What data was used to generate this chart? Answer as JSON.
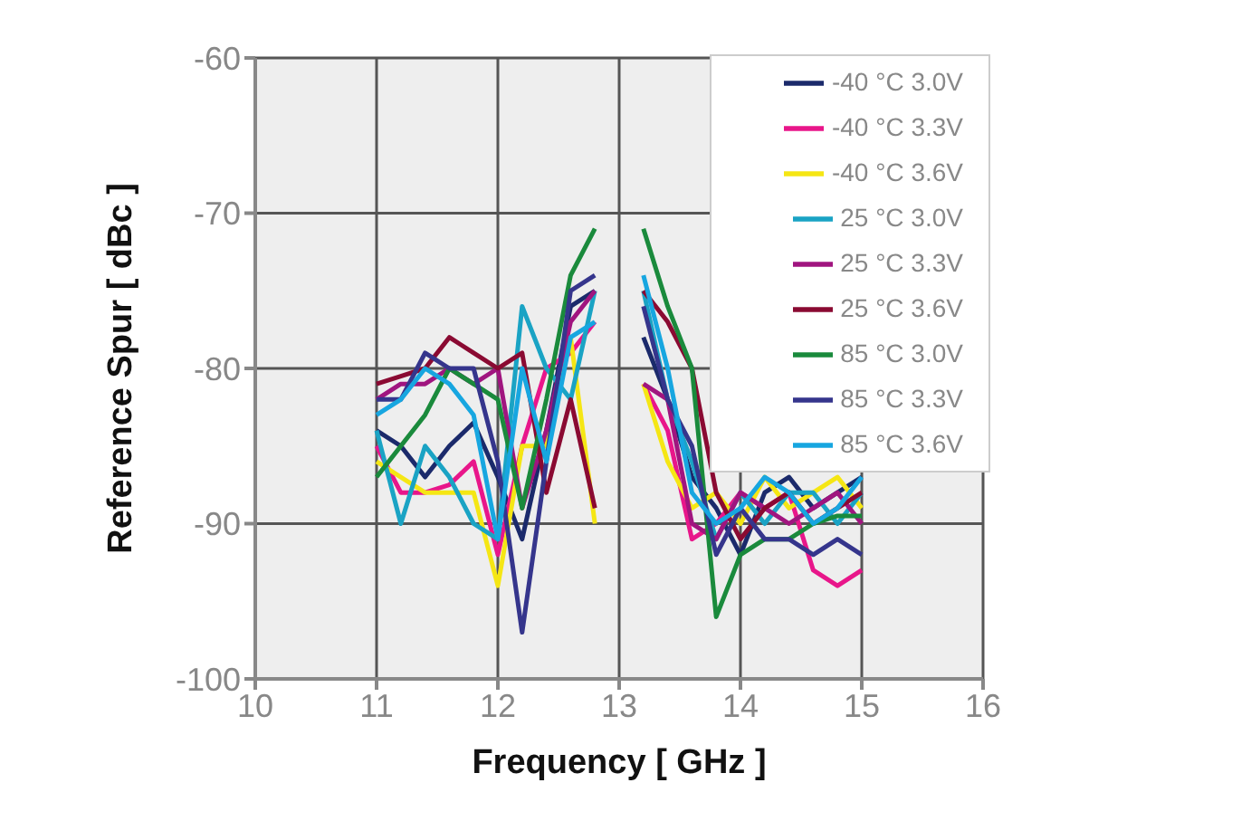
{
  "chart_data": {
    "type": "line",
    "xlabel": "Frequency [ GHz ]",
    "ylabel": "Reference Spur [ dBc ]",
    "x": [
      11,
      11.2,
      11.4,
      11.6,
      11.8,
      12,
      12.2,
      12.4,
      12.6,
      12.8,
      13,
      13.2,
      13.4,
      13.6,
      13.8,
      14,
      14.2,
      14.4,
      14.6,
      14.8,
      15
    ],
    "series": [
      {
        "name": "-40 °C 3.0V",
        "color": "#1b2a6b",
        "values": [
          -84,
          -85,
          -87,
          -85,
          -83.5,
          -87,
          -91,
          -84,
          -76,
          -75,
          null,
          -78,
          -82,
          -87,
          -89,
          -92,
          -88,
          -87,
          -89,
          -88,
          -87
        ]
      },
      {
        "name": "-40 °C 3.3V",
        "color": "#e8168a",
        "values": [
          -85,
          -88,
          -88,
          -87.5,
          -86,
          -92,
          -85,
          -80,
          -79,
          -77,
          null,
          -81,
          -84,
          -91,
          -90,
          -88,
          -89,
          -88,
          -93,
          -94,
          -93
        ]
      },
      {
        "name": "-40 °C 3.6V",
        "color": "#f5e614",
        "values": [
          -86,
          -87,
          -88,
          -88,
          -88,
          -94,
          -85,
          -85,
          -78,
          -90,
          null,
          -81,
          -86,
          -89,
          -88,
          -90,
          -87,
          -89,
          -88,
          -87,
          -89
        ]
      },
      {
        "name": "25 °C 3.0V",
        "color": "#1aa3c4",
        "values": [
          -84,
          -90,
          -85,
          -87,
          -90,
          -91,
          -76,
          -80,
          -82,
          -75,
          null,
          -75,
          -82,
          -86,
          -91,
          -88,
          -90,
          -88,
          -88,
          -90,
          -88
        ]
      },
      {
        "name": "25 °C 3.3V",
        "color": "#a0157f",
        "values": [
          -82,
          -81,
          -81,
          -80,
          -81,
          -80,
          -89,
          -84,
          -77,
          -75,
          null,
          -81,
          -82,
          -90,
          -91,
          -88,
          -89,
          -90,
          -89,
          -88,
          -90
        ]
      },
      {
        "name": "25 °C 3.6V",
        "color": "#8a0a32",
        "values": [
          -81,
          -80.5,
          -80,
          -78,
          -79,
          -80,
          -79,
          -88,
          -82,
          -89,
          null,
          -75,
          -77,
          -80,
          -88,
          -91,
          -89,
          -88,
          -90,
          -89,
          -88
        ]
      },
      {
        "name": "85 °C 3.0V",
        "color": "#1a8a3c",
        "values": [
          -87,
          -85,
          -83,
          -80,
          -81,
          -82,
          -89,
          -82,
          -74,
          -71,
          null,
          -71,
          -76,
          -80,
          -96,
          -92,
          -91,
          -91,
          -90,
          -89.5,
          -89.5
        ]
      },
      {
        "name": "85 °C 3.3V",
        "color": "#35358c",
        "values": [
          -82,
          -82,
          -79,
          -80,
          -80,
          -86,
          -97,
          -86,
          -75,
          -74,
          null,
          -76,
          -82,
          -85,
          -92,
          -89,
          -91,
          -91,
          -92,
          -91,
          -92
        ]
      },
      {
        "name": "85 °C 3.6V",
        "color": "#17a6e0",
        "values": [
          -83,
          -82,
          -80,
          -81,
          -83,
          -91,
          -80,
          -86,
          -78,
          -77,
          null,
          -74,
          -80,
          -88,
          -90,
          -89,
          -87,
          -88,
          -90,
          -89,
          -87
        ]
      }
    ],
    "xlim": [
      10,
      16
    ],
    "xticks": [
      10,
      11,
      12,
      13,
      14,
      15,
      16
    ],
    "ylim": [
      -100,
      -60
    ],
    "yticks": [
      -100,
      -90,
      -80,
      -70,
      -60
    ],
    "grid": true,
    "legend": "top right",
    "marker": "none",
    "line_style": "solid"
  }
}
